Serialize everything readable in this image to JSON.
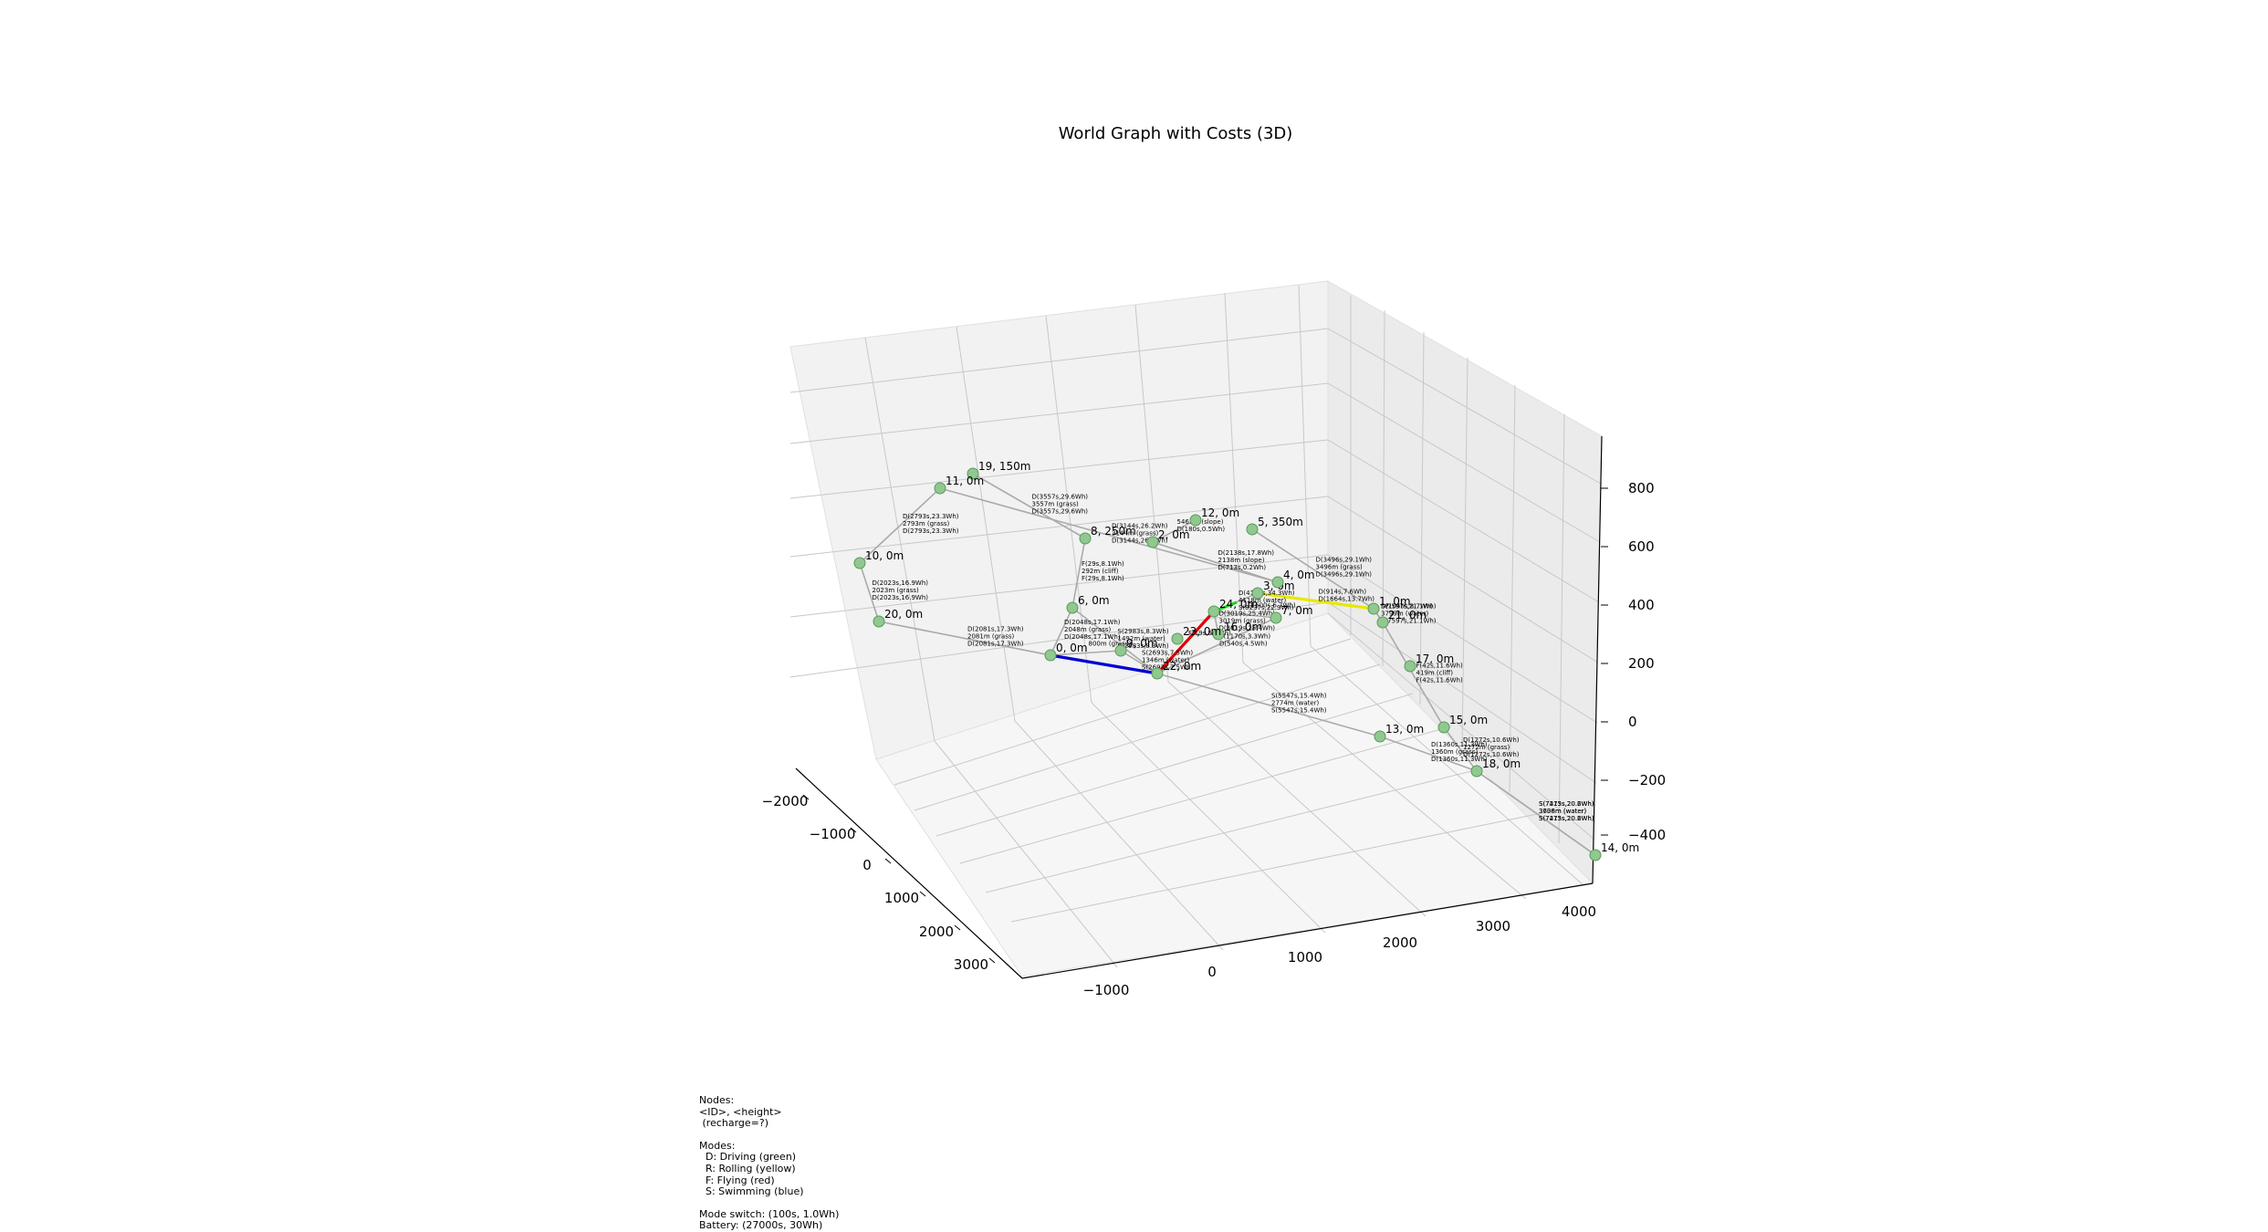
{
  "chart_data": {
    "type": "scatter",
    "title": "World Graph with Costs (3D)",
    "axes": {
      "x_ticks": [
        "−2000",
        "−1000",
        "0",
        "1000",
        "2000",
        "3000"
      ],
      "y_ticks": [
        "−1000",
        "0",
        "1000",
        "2000",
        "3000",
        "4000"
      ],
      "z_ticks": [
        "800",
        "600",
        "400",
        "200",
        "0",
        "−200",
        "−400"
      ],
      "grid": true
    },
    "nodes": [
      {
        "id": "19",
        "label": "19, 150m"
      },
      {
        "id": "11",
        "label": "11, 0m"
      },
      {
        "id": "10",
        "label": "10, 0m"
      },
      {
        "id": "20",
        "label": "20, 0m"
      },
      {
        "id": "8",
        "label": "8, 250m"
      },
      {
        "id": "2",
        "label": "2, 0m"
      },
      {
        "id": "12",
        "label": "12, 0m"
      },
      {
        "id": "5",
        "label": "5, 350m"
      },
      {
        "id": "6",
        "label": "6, 0m"
      },
      {
        "id": "0",
        "label": "0, 0m"
      },
      {
        "id": "9",
        "label": "9, 0m"
      },
      {
        "id": "24",
        "label": "24, 0m"
      },
      {
        "id": "22",
        "label": "22, 0m"
      },
      {
        "id": "7",
        "label": "7, 0m"
      },
      {
        "id": "21",
        "label": "21, 0m"
      },
      {
        "id": "13",
        "label": "13, 0m"
      },
      {
        "id": "15",
        "label": "15, 0m"
      },
      {
        "id": "18",
        "label": "18, 0m"
      },
      {
        "id": "14",
        "label": "14, 0m"
      },
      {
        "id": "3",
        "label": "3, 0m"
      },
      {
        "id": "4",
        "label": "4, 0m"
      },
      {
        "id": "16",
        "label": "16, 0m"
      },
      {
        "id": "1",
        "label": "1, 0m"
      },
      {
        "id": "17",
        "label": "17, 0m"
      },
      {
        "id": "23",
        "label": "23, 0m"
      }
    ],
    "edges": [
      {
        "from": "11",
        "to": "10",
        "mode": "D",
        "lines": [
          "D(2793s,23.3Wh)",
          "2793m (grass)",
          "D(2793s,23.3Wh)"
        ]
      },
      {
        "from": "11",
        "to": "4",
        "mode": "D",
        "lines": [
          "D(3144s,26.2Wh)",
          "3144m (grass)",
          "D(3144s,26.2Wh)"
        ]
      },
      {
        "from": "10",
        "to": "20",
        "mode": "D",
        "lines": [
          "D(2023s,16.9Wh)",
          "2023m (grass)",
          "D(2023s,16.9Wh)"
        ]
      },
      {
        "from": "19",
        "to": "8",
        "mode": "D",
        "lines": [
          "D(3557s,29.6Wh)",
          "3557m (grass)",
          "D(3557s,29.6Wh)"
        ]
      },
      {
        "from": "8",
        "to": "6",
        "mode": "D",
        "lines": [
          "F(29s,8.1Wh)",
          "292m (cliff)",
          "F(29s,8.1Wh)"
        ]
      },
      {
        "from": "2",
        "to": "12",
        "mode": "D",
        "lines": [
          "5461m (slope)",
          "D(180s,0.5Wh)"
        ]
      },
      {
        "from": "2",
        "to": "4",
        "mode": "D",
        "lines": [
          "D(2138s,17.8Wh)",
          "2138m (slope)",
          "D(713s,0.2Wh)"
        ]
      },
      {
        "from": "5",
        "to": "1",
        "mode": "D",
        "lines": [
          "D(3496s,29.1Wh)",
          "3496m (grass)",
          "D(3496s,29.1Wh)"
        ]
      },
      {
        "from": "20",
        "to": "0",
        "mode": "D",
        "lines": [
          "D(2081s,17.3Wh)",
          "2081m (grass)",
          "D(2081s,17.3Wh)"
        ]
      },
      {
        "from": "6",
        "to": "0",
        "mode": "D",
        "lines": [
          "D(2048s,17.1Wh)",
          "2048m (grass)",
          "D(2048s,17.1Wh)"
        ]
      },
      {
        "from": "6",
        "to": "22",
        "mode": "S",
        "lines": [
          "S(2983s,8.3Wh)",
          "1492m (water)",
          "S(2983s,8.3Wh)"
        ]
      },
      {
        "from": "9",
        "to": "22",
        "mode": "S",
        "lines": [
          "S(2693s,7.5Wh)",
          "1346m (water)",
          "S(2693s,7.5Wh)"
        ]
      },
      {
        "from": "0",
        "to": "9",
        "mode": "D",
        "lines": [
          "800m (grass)"
        ]
      },
      {
        "from": "0",
        "to": "22",
        "mode": "S",
        "lines": []
      },
      {
        "from": "22",
        "to": "24",
        "mode": "F",
        "lines": [
          "F(19s,5.2Wh)"
        ]
      },
      {
        "from": "22",
        "to": "13",
        "mode": "S",
        "lines": [
          "S(5547s,15.4Wh)",
          "2774m (water)",
          "S(5547s,15.4Wh)"
        ]
      },
      {
        "from": "22",
        "to": "7",
        "mode": "S",
        "lines": [
          "S(1170s,3.3Wh)",
          "D(540s,4.5Wh)"
        ]
      },
      {
        "from": "3",
        "to": "1",
        "mode": "R",
        "lines": [
          "D(914s,7.6Wh)",
          "D(1664s,13.7Wh)"
        ]
      },
      {
        "from": "1",
        "to": "21",
        "mode": "D",
        "lines": [
          "D(1040s,8.7Wh)"
        ]
      },
      {
        "from": "21",
        "to": "15",
        "mode": "F",
        "lines": [
          "F(42s,11.6Wh)",
          "419m (cliff)",
          "F(42s,11.6Wh)"
        ]
      },
      {
        "from": "1",
        "to": "21",
        "mode": "S",
        "lines": [
          "S(7597s,21.1Wh)",
          "3799m (water)",
          "S(7597s,21.1Wh)"
        ]
      },
      {
        "from": "15",
        "to": "18",
        "mode": "D",
        "lines": [
          "D(1272s,10.6Wh)",
          "1272m (grass)",
          "D(1272s,10.6Wh)"
        ]
      },
      {
        "from": "13",
        "to": "18",
        "mode": "D",
        "lines": [
          "D(1360s,11.3Wh)",
          "1360m (grass)",
          "D(1360s,11.3Wh)"
        ]
      },
      {
        "from": "18",
        "to": "14",
        "mode": "S",
        "lines": [
          "S(7273s,20.2Wh)",
          "3636m (water)",
          "S(7273s,20.2Wh)"
        ]
      },
      {
        "from": "18",
        "to": "14",
        "mode": "S",
        "lines": [
          "S(7415s,20.6Wh)",
          "3708m (water)",
          "S(7415s,20.6Wh)"
        ]
      },
      {
        "from": "24",
        "to": "16",
        "mode": "D",
        "lines": [
          "D(3019s,25.4Wh)",
          "3019m (grass)",
          "D(3019s,25.4Wh)"
        ]
      },
      {
        "from": "24",
        "to": "3",
        "mode": "D",
        "lines": [
          "D(4118s,34.3Wh)",
          "4118m (water)",
          "S(8237s,22.9Wh)"
        ]
      },
      {
        "from": "7",
        "to": "24",
        "mode": "D",
        "lines": [
          "D(600s,6.7Wh)"
        ]
      }
    ],
    "legend_text": [
      "Nodes:",
      "<ID>, <height>",
      " (recharge=?)",
      "",
      "Modes:",
      "  D: Driving (green)",
      "  R: Rolling (yellow)",
      "  F: Flying (red)",
      "  S: Swimming (blue)",
      "",
      "Mode switch: (100s, 1.0Wh)",
      "Battery: (27000s, 30Wh)"
    ],
    "colors": {
      "edge": "#aaaaaa",
      "node": "#90c890",
      "node_edge": "#5a9a5a",
      "driving": "#22cc22",
      "rolling": "#e8e800",
      "flying": "#e00000",
      "swimming": "#0000d0",
      "pane_left": "#f2f2f2",
      "pane_right": "#ebebeb",
      "pane_floor": "#f6f6f6",
      "grid": "#c8c8c8"
    }
  }
}
